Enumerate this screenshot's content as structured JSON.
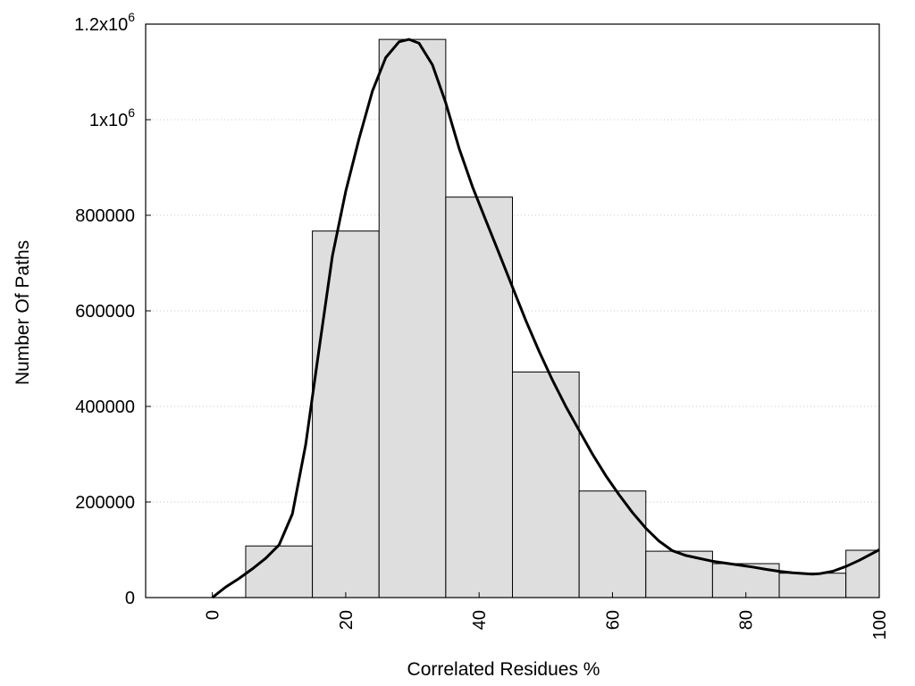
{
  "chart_data": {
    "type": "bar",
    "title": "",
    "xlabel": "Correlated Residues %",
    "ylabel": "Number Of Paths",
    "xlim": [
      -10,
      100
    ],
    "ylim": [
      0,
      1200000
    ],
    "grid": {
      "y": true,
      "x": false,
      "style": "dotted"
    },
    "legend": "none",
    "x_ticks": [
      {
        "value": 0,
        "label": "0"
      },
      {
        "value": 20,
        "label": "20"
      },
      {
        "value": 40,
        "label": "40"
      },
      {
        "value": 60,
        "label": "60"
      },
      {
        "value": 80,
        "label": "80"
      },
      {
        "value": 100,
        "label": "100"
      }
    ],
    "y_ticks": [
      {
        "value": 0,
        "label": "0"
      },
      {
        "value": 200000,
        "label": "200000"
      },
      {
        "value": 400000,
        "label": "400000"
      },
      {
        "value": 600000,
        "label": "600000"
      },
      {
        "value": 800000,
        "label": "800000"
      },
      {
        "value": 1000000,
        "label": "1x10",
        "sup": "6"
      },
      {
        "value": 1200000,
        "label": "1.2x10",
        "sup": "6"
      }
    ],
    "bins": [
      {
        "x0": 5,
        "x1": 15,
        "value": 108000
      },
      {
        "x0": 15,
        "x1": 25,
        "value": 767000
      },
      {
        "x0": 25,
        "x1": 35,
        "value": 1168000
      },
      {
        "x0": 35,
        "x1": 45,
        "value": 838000
      },
      {
        "x0": 45,
        "x1": 55,
        "value": 472000
      },
      {
        "x0": 55,
        "x1": 65,
        "value": 223000
      },
      {
        "x0": 65,
        "x1": 75,
        "value": 97000
      },
      {
        "x0": 75,
        "x1": 85,
        "value": 71000
      },
      {
        "x0": 85,
        "x1": 95,
        "value": 51000
      },
      {
        "x0": 95,
        "x1": 100,
        "value": 99000
      }
    ],
    "curve": {
      "x": [
        0,
        2,
        4,
        6,
        8,
        10,
        12,
        14,
        16,
        18,
        20,
        22,
        24,
        26,
        28,
        29.5,
        31,
        33,
        35,
        37,
        39,
        41,
        43,
        45,
        47,
        49,
        51,
        53,
        55,
        57,
        59,
        61,
        63,
        65,
        67,
        69,
        71,
        73,
        75,
        77,
        79,
        81,
        83,
        85,
        87,
        89,
        90,
        91,
        93,
        95,
        97,
        100
      ],
      "y": [
        0,
        22000,
        40000,
        60000,
        82000,
        110000,
        175000,
        320000,
        520000,
        715000,
        850000,
        960000,
        1060000,
        1130000,
        1163000,
        1168000,
        1160000,
        1115000,
        1035000,
        940000,
        860000,
        790000,
        720000,
        650000,
        580000,
        515000,
        455000,
        400000,
        350000,
        300000,
        255000,
        215000,
        178000,
        145000,
        118000,
        98000,
        88000,
        82000,
        76000,
        72000,
        68000,
        64000,
        59000,
        55000,
        52000,
        50000,
        49000,
        50000,
        55000,
        65000,
        78000,
        100000
      ]
    },
    "colors": {
      "bar_fill": "#dedede",
      "bar_stroke": "#000000",
      "curve": "#000000",
      "grid": "#c8c8c8"
    }
  }
}
